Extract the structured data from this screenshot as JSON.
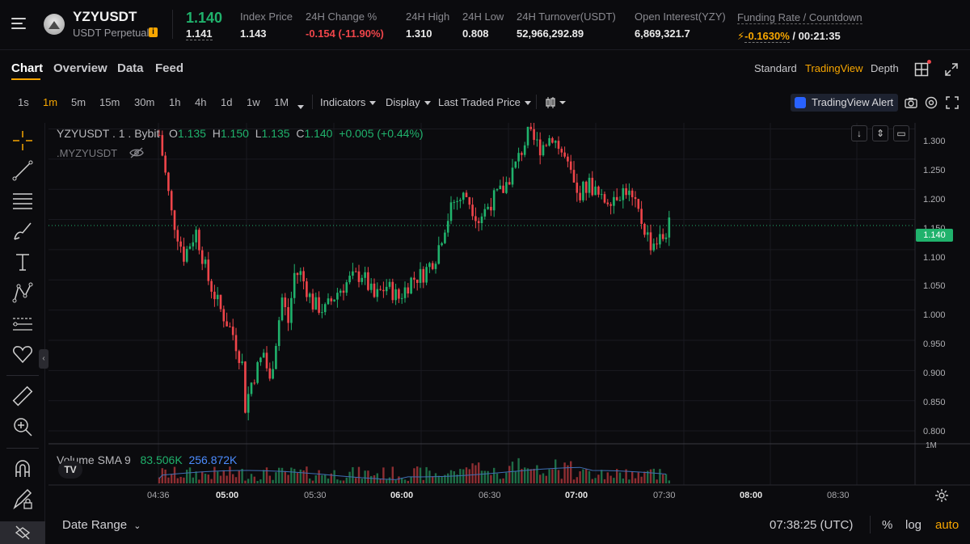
{
  "header": {
    "symbol": "YZYUSDT",
    "contract_type": "USDT Perpetual",
    "last_price": "1.140",
    "mark_price": "1.141",
    "stats": [
      {
        "label": "Index Price",
        "value": "1.143"
      },
      {
        "label": "24H Change %",
        "value": "-0.154 (-11.90%)"
      },
      {
        "label": "24H High",
        "value": "1.310"
      },
      {
        "label": "24H Low",
        "value": "0.808"
      },
      {
        "label": "24H Turnover(USDT)",
        "value": "52,966,292.89"
      },
      {
        "label": "Open Interest(YZY)",
        "value": "6,869,321.7"
      }
    ],
    "funding": {
      "label": "Funding Rate / Countdown",
      "rate": "-0.1630%",
      "countdown": "/ 00:21:35"
    }
  },
  "tabs": [
    "Chart",
    "Overview",
    "Data",
    "Feed"
  ],
  "views": [
    "Standard",
    "TradingView",
    "Depth"
  ],
  "timeframes": [
    "1s",
    "1m",
    "5m",
    "15m",
    "30m",
    "1h",
    "4h",
    "1d",
    "1w",
    "1M"
  ],
  "toolbar": {
    "indicators": "Indicators",
    "display": "Display",
    "price_source": "Last Traded Price",
    "alert": "TradingView Alert"
  },
  "chart": {
    "legend": {
      "title": "YZYUSDT . 1 . Bybit",
      "o_label": "O",
      "o": "1.135",
      "h_label": "H",
      "h": "1.150",
      "l_label": "L",
      "l": "1.135",
      "c_label": "C",
      "c": "1.140",
      "change": "+0.005 (+0.44%)",
      "overlay": ".MYZYUSDT"
    },
    "current_price": "1.140",
    "volume_legend": {
      "title": "Volume SMA 9",
      "v1": "83.506K",
      "v2": "256.872K"
    },
    "volume_axis_label": "1M",
    "tv_logo": "TV"
  },
  "chart_data": {
    "type": "candlestick",
    "title": "YZYUSDT 1m",
    "x_ticks": [
      "04:36",
      "05:00",
      "05:30",
      "06:00",
      "06:30",
      "07:00",
      "07:30",
      "08:00",
      "08:30"
    ],
    "y_ticks": [
      "1.300",
      "1.250",
      "1.200",
      "1.150",
      "1.100",
      "1.050",
      "1.000",
      "0.950",
      "0.900",
      "0.850",
      "0.800"
    ],
    "ylim": [
      0.78,
      1.31
    ],
    "anchors": [
      [
        0,
        1.29
      ],
      [
        4,
        1.16
      ],
      [
        8,
        1.09
      ],
      [
        12,
        1.13
      ],
      [
        16,
        1.05
      ],
      [
        20,
        1.0
      ],
      [
        24,
        0.96
      ],
      [
        27,
        0.91
      ],
      [
        28,
        0.84
      ],
      [
        30,
        0.88
      ],
      [
        34,
        0.93
      ],
      [
        36,
        0.88
      ],
      [
        40,
        1.02
      ],
      [
        42,
        0.98
      ],
      [
        44,
        1.06
      ],
      [
        46,
        1.06
      ],
      [
        50,
        1.01
      ],
      [
        54,
        1.0
      ],
      [
        58,
        1.03
      ],
      [
        62,
        1.05
      ],
      [
        66,
        1.06
      ],
      [
        70,
        1.02
      ],
      [
        74,
        1.04
      ],
      [
        78,
        1.02
      ],
      [
        82,
        1.05
      ],
      [
        86,
        1.06
      ],
      [
        90,
        1.09
      ],
      [
        93,
        1.14
      ],
      [
        96,
        1.18
      ],
      [
        100,
        1.19
      ],
      [
        104,
        1.15
      ],
      [
        108,
        1.18
      ],
      [
        112,
        1.2
      ],
      [
        116,
        1.24
      ],
      [
        120,
        1.29
      ],
      [
        124,
        1.27
      ],
      [
        128,
        1.29
      ],
      [
        132,
        1.25
      ],
      [
        136,
        1.19
      ],
      [
        140,
        1.21
      ],
      [
        144,
        1.18
      ],
      [
        148,
        1.19
      ],
      [
        152,
        1.2
      ],
      [
        156,
        1.16
      ],
      [
        160,
        1.11
      ],
      [
        164,
        1.12
      ],
      [
        166,
        1.14
      ]
    ]
  },
  "bottom": {
    "date_range": "Date Range",
    "clock": "07:38:25 (UTC)",
    "percent": "%",
    "log": "log",
    "auto": "auto"
  }
}
